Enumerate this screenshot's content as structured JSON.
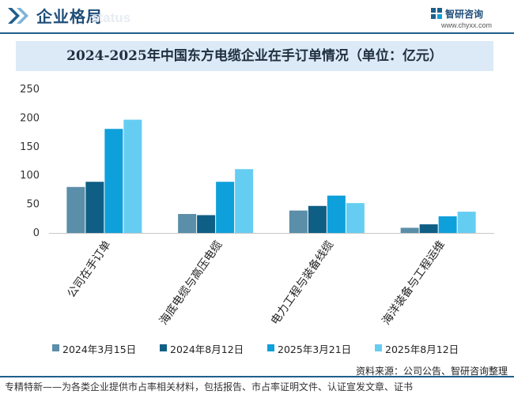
{
  "header": {
    "section_title": "企业格局",
    "watermark_text": "status",
    "logo_name": "智研咨询",
    "logo_url": "www.chyxx.com"
  },
  "colors": {
    "brand": "#1f5e8c",
    "title_band": "#dbeaf6",
    "series": [
      "#5b8ea8",
      "#0f5e85",
      "#0ea0db",
      "#66cdf2"
    ]
  },
  "chart_data": {
    "type": "bar",
    "title": "2024-2025年中国东方电缆企业在手订单情况（单位：亿元）",
    "categories": [
      "公司在手订单",
      "海底电缆与高压电缆",
      "电力工程与装备线缆",
      "海洋装备与工程运维"
    ],
    "series": [
      {
        "name": "2024年3月15日",
        "values": [
          80,
          33,
          39,
          9
        ]
      },
      {
        "name": "2024年8月12日",
        "values": [
          89,
          31,
          47,
          15
        ]
      },
      {
        "name": "2025年3月21日",
        "values": [
          181,
          89,
          65,
          29
        ]
      },
      {
        "name": "2025年8月12日",
        "values": [
          197,
          111,
          52,
          37
        ]
      }
    ],
    "ylim": [
      0,
      250
    ],
    "yticks": [
      0,
      50,
      100,
      150,
      200,
      250
    ],
    "grid": false,
    "legend_position": "bottom"
  },
  "source": "资料来源：公司公告、智研咨询整理",
  "footer": "专精特新——为各类企业提供市占率相关材料，包括报告、市占率证明文件、认证宣发文章、证书"
}
